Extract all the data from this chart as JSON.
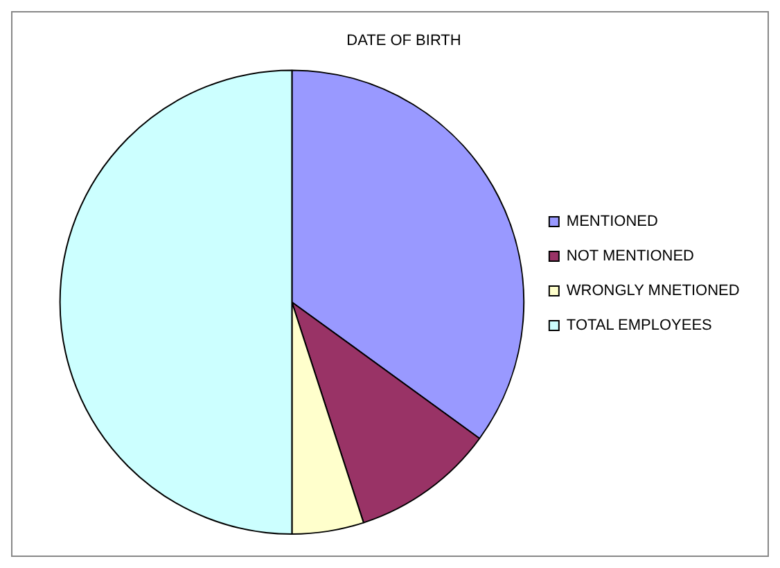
{
  "chart_data": {
    "type": "pie",
    "title": "DATE OF BIRTH",
    "categories": [
      "MENTIONED",
      "NOT MENTIONED",
      "WRONGLY MNETIONED",
      "TOTAL EMPLOYEES"
    ],
    "values": [
      35,
      10,
      5,
      50
    ],
    "colors": [
      "#9999ff",
      "#993366",
      "#ffffcc",
      "#ccffff"
    ],
    "legend": "right"
  }
}
